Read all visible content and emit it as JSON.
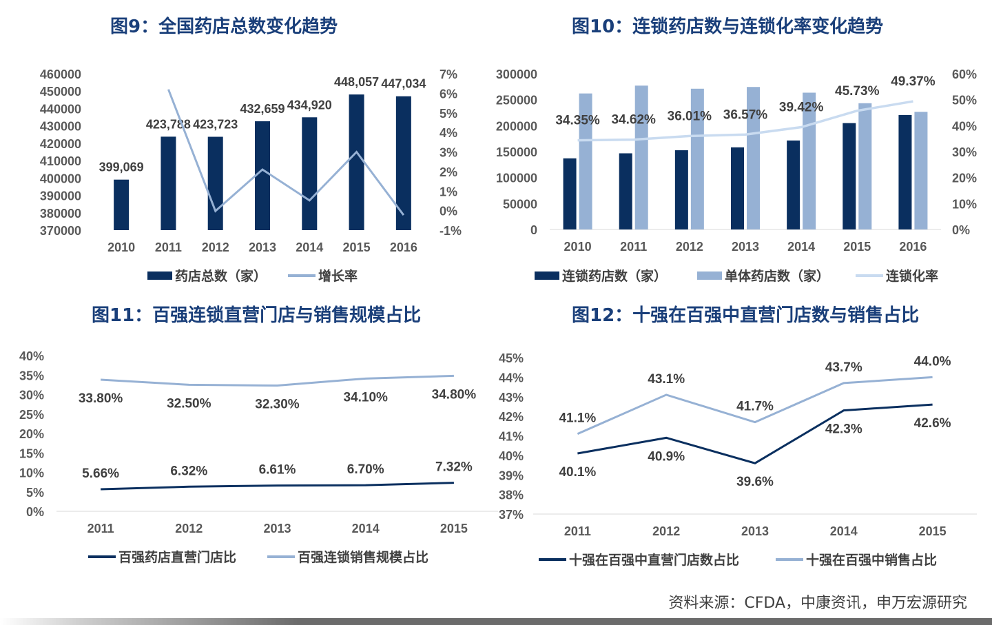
{
  "source": "资料来源：CFDA，中康资讯，申万宏源研究",
  "colors": {
    "dark": "#0a2f5f",
    "light": "#96b1d4",
    "pale": "#c9dbf0",
    "title": "#1a3f7a"
  },
  "chart_data": [
    {
      "id": "fig9",
      "type": "bar+line",
      "title": "图9：全国药店总数变化趋势",
      "categories": [
        "2010",
        "2011",
        "2012",
        "2013",
        "2014",
        "2015",
        "2016"
      ],
      "bar_series": {
        "name": "药店总数（家）",
        "values": [
          399069,
          423788,
          423723,
          432659,
          434920,
          448057,
          447034
        ],
        "labels": [
          "399,069",
          "423,788",
          "423,723",
          "432,659",
          "434,920",
          "448,057",
          "447,034"
        ]
      },
      "line_series": {
        "name": "增长率",
        "values": [
          null,
          6.2,
          -0.02,
          2.1,
          0.52,
          3.0,
          -0.23
        ]
      },
      "y_left": {
        "min": 370000,
        "max": 460000,
        "ticks": [
          "460000",
          "450000",
          "440000",
          "430000",
          "420000",
          "410000",
          "400000",
          "390000",
          "380000",
          "370000"
        ]
      },
      "y_right": {
        "min": -1,
        "max": 7,
        "ticks": [
          "7%",
          "6%",
          "5%",
          "4%",
          "3%",
          "2%",
          "1%",
          "0%",
          "-1%"
        ]
      },
      "legend": "bottom"
    },
    {
      "id": "fig10",
      "type": "bar+line",
      "title": "图10：连锁药店数与连锁化率变化趋势",
      "categories": [
        "2010",
        "2011",
        "2012",
        "2013",
        "2014",
        "2015",
        "2016"
      ],
      "series": [
        {
          "name": "连锁药店数（家）",
          "values": [
            137000,
            146700,
            152600,
            158200,
            171400,
            204900,
            220500
          ]
        },
        {
          "name": "单体药店数（家）",
          "values": [
            262000,
            277100,
            271100,
            274500,
            263500,
            243200,
            226600
          ]
        }
      ],
      "line_series": {
        "name": "连锁化率",
        "values": [
          34.35,
          34.62,
          36.01,
          36.57,
          39.42,
          45.73,
          49.37
        ],
        "labels": [
          "34.35%",
          "34.62%",
          "36.01%",
          "36.57%",
          "39.42%",
          "45.73%",
          "49.37%"
        ]
      },
      "y_left": {
        "min": 0,
        "max": 300000,
        "ticks": [
          "300000",
          "250000",
          "200000",
          "150000",
          "100000",
          "50000",
          "0"
        ]
      },
      "y_right": {
        "min": 0,
        "max": 60,
        "ticks": [
          "60%",
          "50%",
          "40%",
          "30%",
          "20%",
          "10%",
          "0%"
        ]
      },
      "legend": "bottom"
    },
    {
      "id": "fig11",
      "type": "line",
      "title": "图11：百强连锁直营门店与销售规模占比",
      "categories": [
        "2011",
        "2012",
        "2013",
        "2014",
        "2015"
      ],
      "series": [
        {
          "name": "百强药店直营门店比",
          "values": [
            5.66,
            6.32,
            6.61,
            6.7,
            7.32
          ],
          "labels": [
            "5.66%",
            "6.32%",
            "6.61%",
            "6.70%",
            "7.32%"
          ]
        },
        {
          "name": "百强连锁销售规模占比",
          "values": [
            33.8,
            32.5,
            32.3,
            34.1,
            34.8
          ],
          "labels": [
            "33.80%",
            "32.50%",
            "32.30%",
            "34.10%",
            "34.80%"
          ]
        }
      ],
      "y": {
        "min": 0,
        "max": 40,
        "ticks": [
          "40%",
          "35%",
          "30%",
          "25%",
          "20%",
          "15%",
          "10%",
          "5%",
          "0%"
        ]
      },
      "legend": "bottom"
    },
    {
      "id": "fig12",
      "type": "line",
      "title": "图12：十强在百强中直营门店数与销售占比",
      "categories": [
        "2011",
        "2012",
        "2013",
        "2014",
        "2015"
      ],
      "series": [
        {
          "name": "十强在百强中直营门店数占比",
          "values": [
            40.1,
            40.9,
            39.6,
            42.3,
            42.6
          ],
          "labels": [
            "40.1%",
            "40.9%",
            "39.6%",
            "42.3%",
            "42.6%"
          ]
        },
        {
          "name": "十强在百强中销售占比",
          "values": [
            41.1,
            43.1,
            41.7,
            43.7,
            44.0
          ],
          "labels": [
            "41.1%",
            "43.1%",
            "41.7%",
            "43.7%",
            "44.0%"
          ]
        }
      ],
      "y": {
        "min": 37,
        "max": 45,
        "ticks": [
          "45%",
          "44%",
          "43%",
          "42%",
          "41%",
          "40%",
          "39%",
          "38%",
          "37%"
        ]
      },
      "legend": "bottom"
    }
  ]
}
